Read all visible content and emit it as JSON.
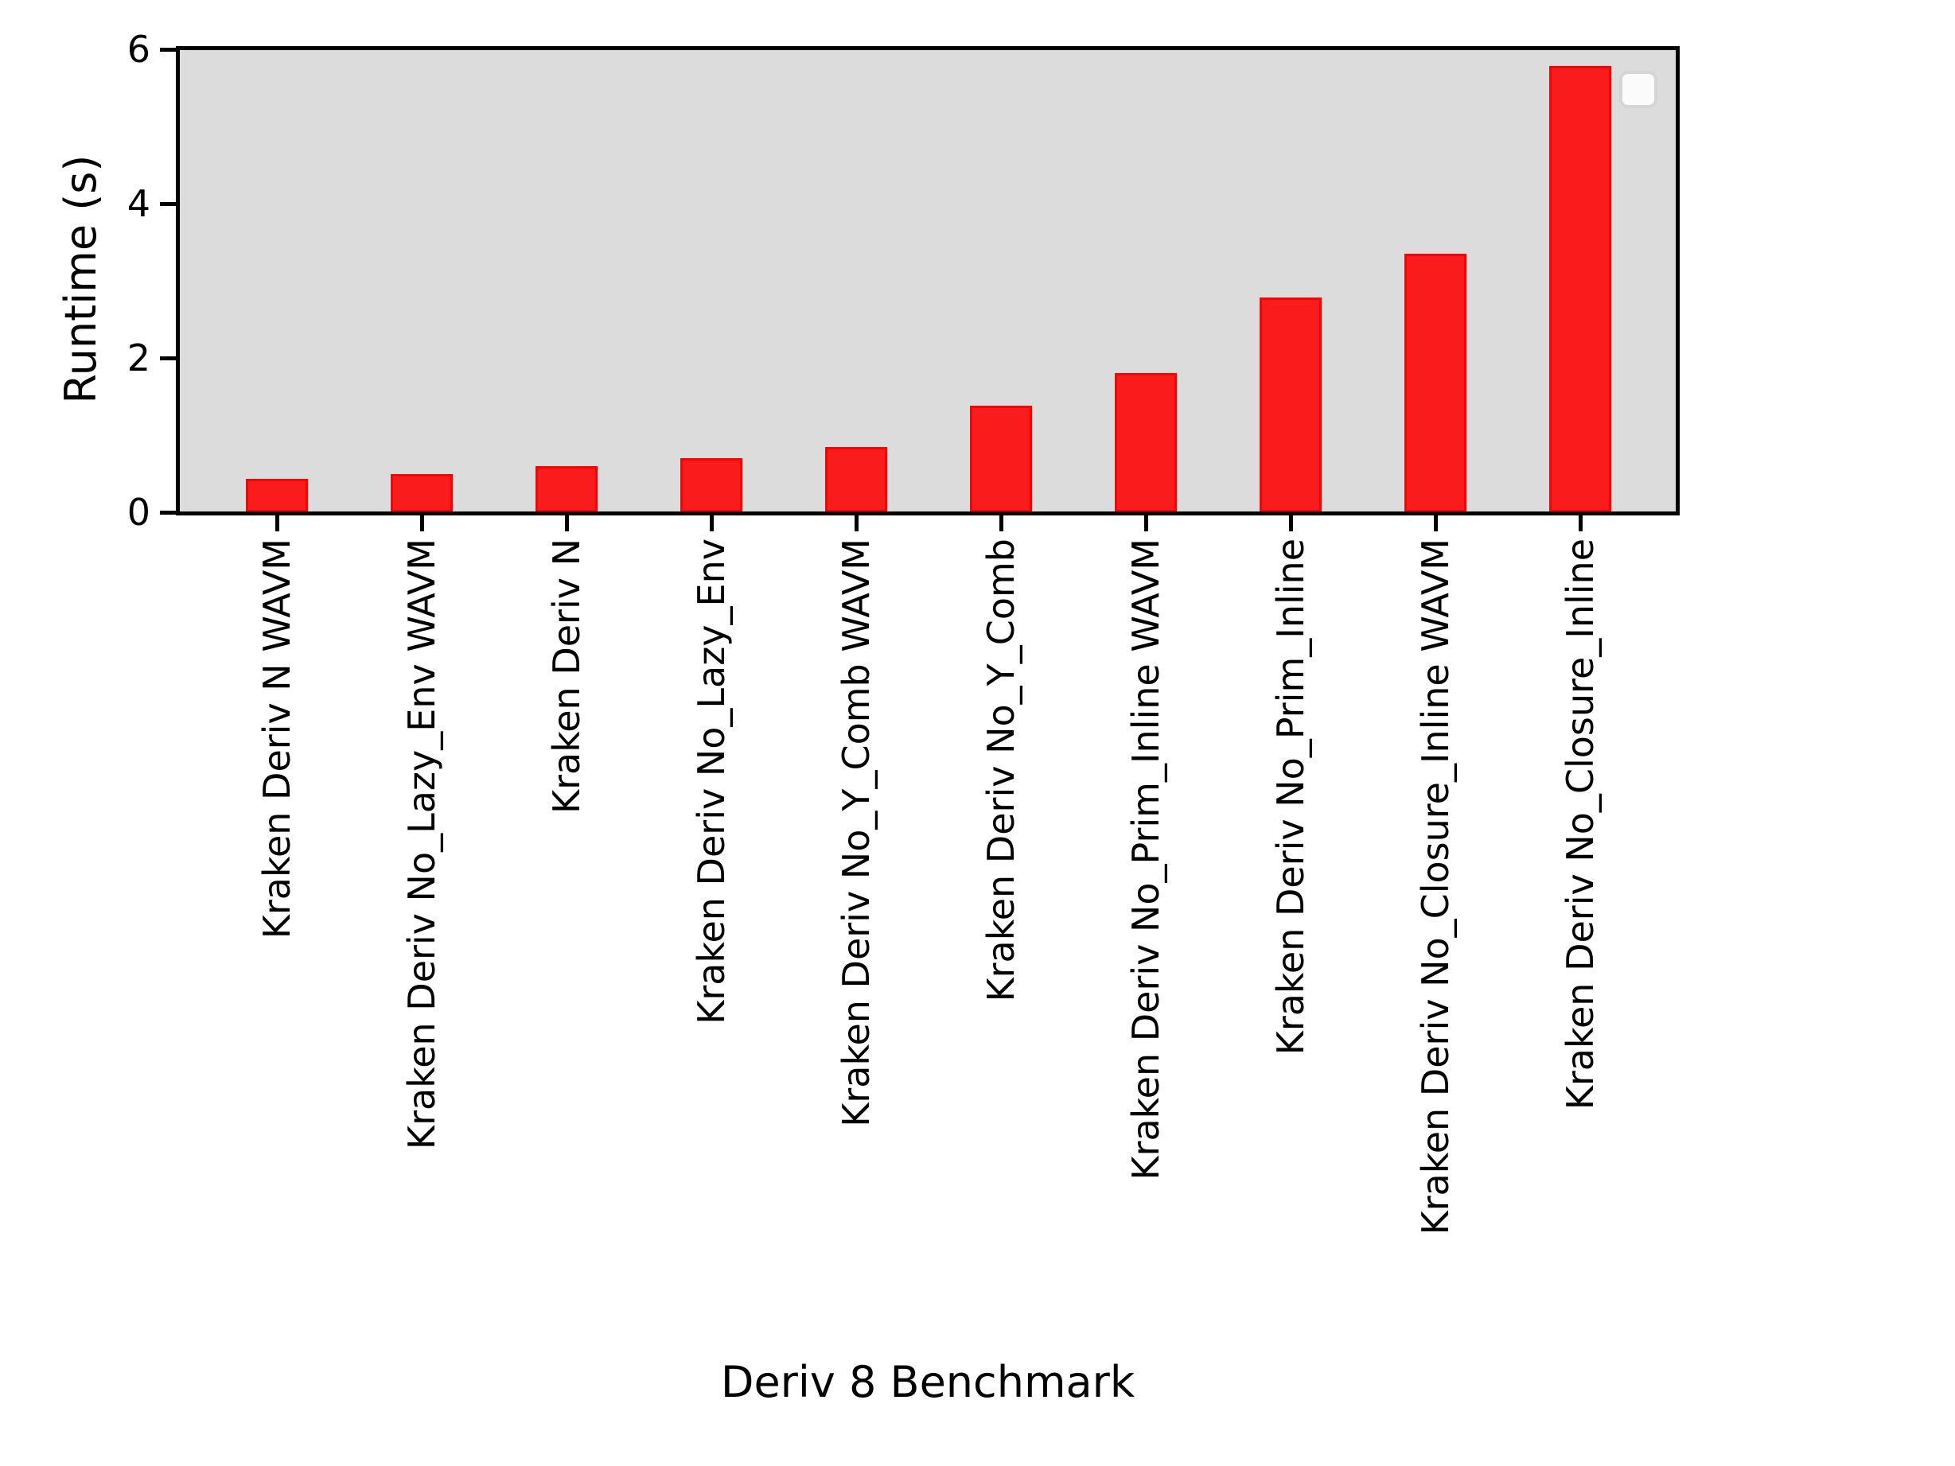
{
  "chart_data": {
    "type": "bar",
    "title": "",
    "xlabel": "Deriv 8 Benchmark",
    "ylabel": "Runtime (s)",
    "categories": [
      "Kraken Deriv N WAVM",
      "Kraken Deriv No_Lazy_Env WAVM",
      "Kraken Deriv N",
      "Kraken Deriv No_Lazy_Env",
      "Kraken Deriv No_Y_Comb WAVM",
      "Kraken Deriv No_Y_Comb",
      "Kraken Deriv No_Prim_Inline WAVM",
      "Kraken Deriv No_Prim_Inline",
      "Kraken Deriv No_Closure_Inline WAVM",
      "Kraken Deriv No_Closure_Inline"
    ],
    "values": [
      0.43,
      0.49,
      0.6,
      0.7,
      0.85,
      1.38,
      1.8,
      2.78,
      3.35,
      5.78
    ],
    "ylim": [
      0,
      6
    ],
    "yticks": [
      0,
      2,
      4,
      6
    ],
    "x_tick_label_rotation": 90,
    "grid": false,
    "legend": {
      "visible": true,
      "entries": []
    },
    "colors": {
      "bar_fill": "#fa1c1c",
      "bar_edge": "#ff0000",
      "plot_background": "#dcdcdc",
      "axis": "#000000",
      "text": "#000000"
    }
  }
}
